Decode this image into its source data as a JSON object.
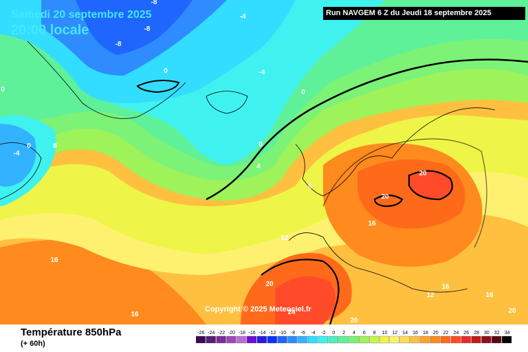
{
  "header": {
    "date": "Samedi 20 septembre 2025",
    "local_time": "20:00 locale",
    "run_info": "Run NAVGEM 6 Z du Jeudi 18 septembre 2025"
  },
  "map": {
    "copyright": "Copyright © 2025 Meteociel.fr",
    "contour_labels": [
      {
        "text": "-8",
        "t": "low"
      },
      {
        "text": "-8",
        "t": "low"
      },
      {
        "text": "-8",
        "t": "low"
      },
      {
        "text": "-4",
        "t": "cold"
      },
      {
        "text": "-4",
        "t": "cold"
      },
      {
        "text": "-4",
        "t": "cold"
      },
      {
        "text": "0",
        "t": "cold"
      },
      {
        "text": "0",
        "t": "cold"
      },
      {
        "text": "0",
        "t": "cold"
      },
      {
        "text": "0",
        "t": "cold"
      },
      {
        "text": "0",
        "t": "cold"
      },
      {
        "text": "4",
        "t": "mid"
      },
      {
        "text": "8",
        "t": "mid"
      },
      {
        "text": "8",
        "t": "mid"
      },
      {
        "text": "12",
        "t": "warm"
      },
      {
        "text": "12",
        "t": "warm"
      },
      {
        "text": "16",
        "t": "warm"
      },
      {
        "text": "16",
        "t": "warm"
      },
      {
        "text": "16",
        "t": "warm"
      },
      {
        "text": "16",
        "t": "warm"
      },
      {
        "text": "16",
        "t": "warm"
      },
      {
        "text": "20",
        "t": "hot"
      },
      {
        "text": "20",
        "t": "hot"
      },
      {
        "text": "20",
        "t": "hot"
      },
      {
        "text": "20",
        "t": "hot"
      },
      {
        "text": "20",
        "t": "hot"
      },
      {
        "text": "24",
        "t": "hot"
      }
    ]
  },
  "footer": {
    "variable": "Température 850hPa",
    "lead": "(+ 60h)"
  },
  "legend": {
    "values": [
      "-26",
      "-24",
      "-22",
      "-20",
      "-18",
      "-16",
      "-14",
      "-12",
      "-10",
      "-8",
      "-6",
      "-4",
      "-2",
      "0",
      "2",
      "4",
      "6",
      "8",
      "10",
      "12",
      "14",
      "16",
      "18",
      "20",
      "22",
      "24",
      "26",
      "28",
      "30",
      "32",
      "34"
    ],
    "colors": [
      "#3a0a52",
      "#5a1a78",
      "#7a2c98",
      "#9b49b5",
      "#b86fd0",
      "#6a0fd8",
      "#2a1ae0",
      "#0b33ff",
      "#1f66ff",
      "#2e8cff",
      "#33b3ff",
      "#33ddff",
      "#3ff2f0",
      "#4eeec0",
      "#5ff09a",
      "#7cf277",
      "#9ef25a",
      "#c8f44c",
      "#eef548",
      "#fff170",
      "#ffdd55",
      "#ffc040",
      "#ffa22c",
      "#ff8a1e",
      "#ff6a1a",
      "#ff4b2a",
      "#ef2a2a",
      "#c21a1a",
      "#8f0e1a",
      "#5a0810",
      "#000000"
    ]
  }
}
